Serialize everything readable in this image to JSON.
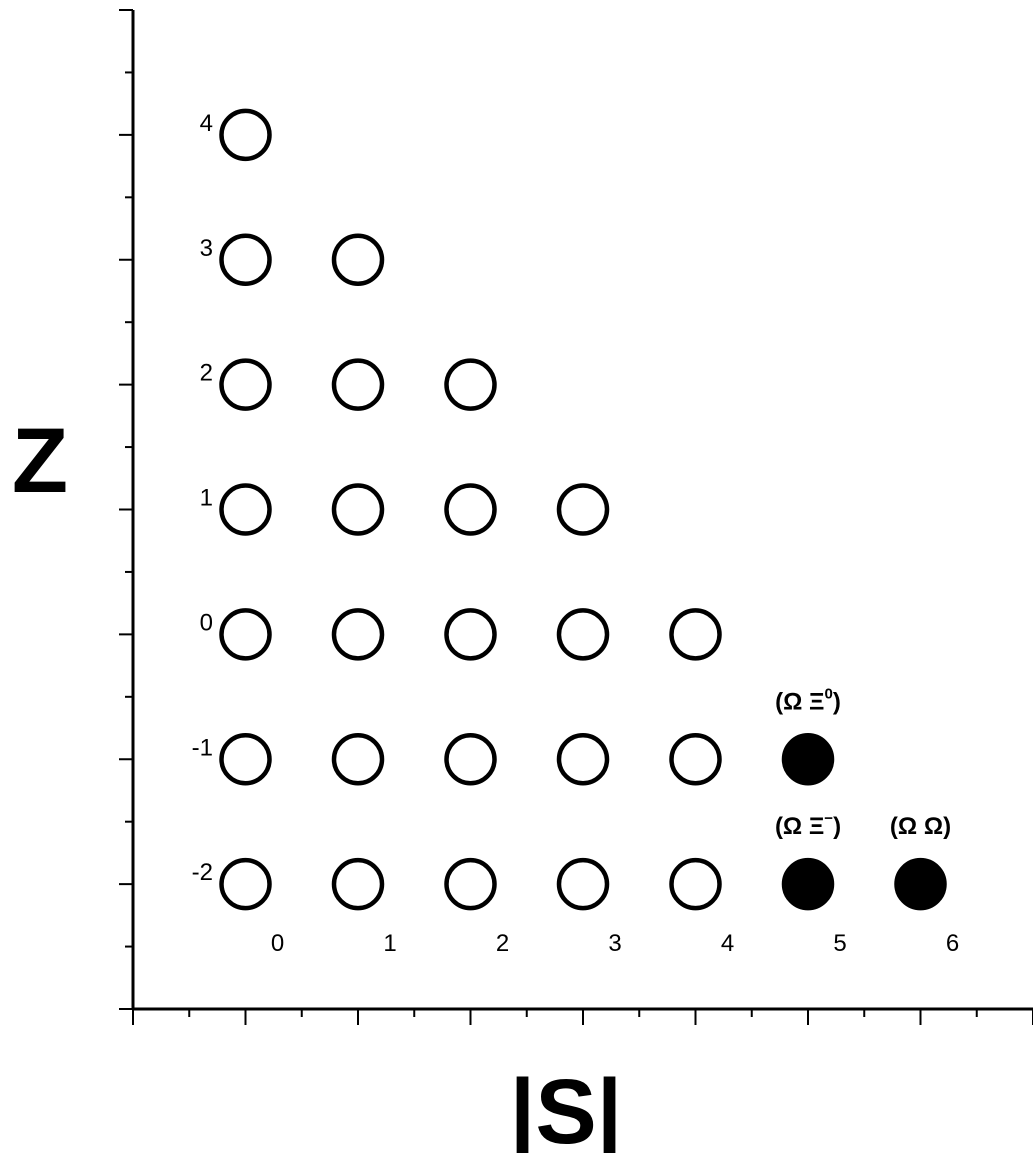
{
  "chart_data": {
    "type": "scatter",
    "xlabel": "|S|",
    "ylabel": "Z",
    "xlim": [
      -1,
      7
    ],
    "ylim": [
      -3,
      5
    ],
    "x_tick_labels": [
      "0",
      "1",
      "2",
      "3",
      "4",
      "5",
      "6"
    ],
    "y_tick_labels": [
      "-2",
      "-1",
      "0",
      "1",
      "2",
      "3",
      "4"
    ],
    "grid": false,
    "series": [
      {
        "marker": "open-circle",
        "color": "#000000",
        "points": [
          [
            0,
            4
          ],
          [
            0,
            3
          ],
          [
            1,
            3
          ],
          [
            0,
            2
          ],
          [
            1,
            2
          ],
          [
            2,
            2
          ],
          [
            0,
            1
          ],
          [
            1,
            1
          ],
          [
            2,
            1
          ],
          [
            3,
            1
          ],
          [
            0,
            0
          ],
          [
            1,
            0
          ],
          [
            2,
            0
          ],
          [
            3,
            0
          ],
          [
            4,
            0
          ],
          [
            0,
            -1
          ],
          [
            1,
            -1
          ],
          [
            2,
            -1
          ],
          [
            3,
            -1
          ],
          [
            4,
            -1
          ],
          [
            0,
            -2
          ],
          [
            1,
            -2
          ],
          [
            2,
            -2
          ],
          [
            3,
            -2
          ],
          [
            4,
            -2
          ]
        ]
      },
      {
        "marker": "filled-circle",
        "color": "#000000",
        "points": [
          [
            5,
            -1
          ],
          [
            5,
            -2
          ],
          [
            6,
            -2
          ]
        ]
      }
    ],
    "annotations": [
      {
        "x": 5,
        "y": -1,
        "prefix": "(Ω Ξ",
        "sup": "0",
        "suffix": ")"
      },
      {
        "x": 5,
        "y": -2,
        "prefix": "(Ω Ξ",
        "sup": "−",
        "suffix": ")"
      },
      {
        "x": 6,
        "y": -2,
        "prefix": "(Ω Ω)",
        "sup": "",
        "suffix": ""
      }
    ]
  }
}
